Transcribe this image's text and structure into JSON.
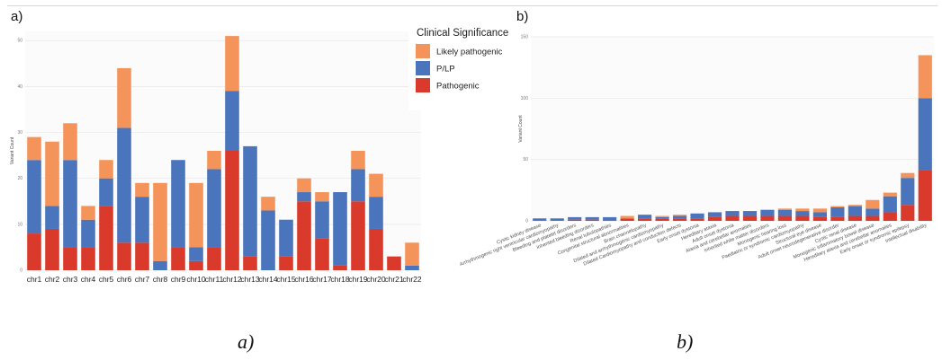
{
  "captions": {
    "a": "a)",
    "b": "b)"
  },
  "chart_data": [
    {
      "panel": "a)",
      "type": "bar",
      "stacked": true,
      "ylabel": "Variant Count",
      "xlabel": "",
      "ylim": [
        0,
        52
      ],
      "yticks": [
        0,
        10,
        20,
        30,
        40,
        50
      ],
      "grid": true,
      "legend": {
        "title": "Clinical Significance",
        "placement": "right"
      },
      "categories": [
        "chr1",
        "chr2",
        "chr3",
        "chr4",
        "chr5",
        "chr6",
        "chr7",
        "chr8",
        "chr9",
        "chr10",
        "chr11",
        "chr12",
        "chr13",
        "chr14",
        "chr15",
        "chr16",
        "chr17",
        "chr18",
        "chr19",
        "chr20",
        "chr21",
        "chr22"
      ],
      "series": [
        {
          "name": "Pathogenic",
          "color": "#d93a2b",
          "values": [
            8,
            9,
            5,
            5,
            14,
            6,
            6,
            0,
            5,
            2,
            5,
            26,
            3,
            0,
            3,
            15,
            7,
            1,
            15,
            9,
            3,
            0
          ]
        },
        {
          "name": "P/LP",
          "color": "#4a74bc",
          "values": [
            16,
            5,
            19,
            6,
            6,
            25,
            10,
            2,
            19,
            3,
            17,
            13,
            24,
            13,
            8,
            2,
            8,
            16,
            7,
            7,
            0,
            1
          ]
        },
        {
          "name": "Likely pathogenic",
          "color": "#f4935a",
          "values": [
            5,
            14,
            8,
            3,
            4,
            13,
            3,
            17,
            0,
            14,
            4,
            12,
            0,
            3,
            0,
            3,
            2,
            0,
            4,
            5,
            0,
            5
          ]
        }
      ]
    },
    {
      "panel": "b)",
      "type": "bar",
      "stacked": true,
      "ylabel": "Variant Count",
      "xlabel": "",
      "ylim": [
        0,
        150
      ],
      "yticks": [
        0,
        50,
        100,
        150
      ],
      "grid": true,
      "categories": [
        "Cystic kidney disease",
        "Arrhythmogenic right ventricular cardiomyopathy",
        "Bleeding and platelet disorders",
        "Inherited bleeding disorders",
        "Renal tubulopathies",
        "Congenital structural abnormalities",
        "Brain channelopathy",
        "Dilated and arrhythmogenic cardiomyopathy",
        "Dilated Cardiomyopathy and conduction defects",
        "Early onset dystonia",
        "Hereditary ataxia",
        "Adult onset dystonia",
        "Ataxia and cerebellar anomalies",
        "Inherited white matter disorders",
        "Monogenic hearing loss",
        "Paediatric or syndromic cardiomyopathy",
        "Structural eye disease",
        "Adult onset neurodegenerative disorder",
        "Cystic renal disease",
        "Monogenic inflammatory bowel disease",
        "Hereditary ataxia and cerebellar anomalies",
        "Early onset or syndromic epilepsy",
        "Intellectual disability"
      ],
      "series": [
        {
          "name": "Pathogenic",
          "color": "#d93a2b",
          "values": [
            0,
            0,
            1,
            1,
            0,
            2,
            2,
            2,
            2,
            2,
            3,
            4,
            4,
            4,
            4,
            4,
            3,
            3,
            4,
            4,
            7,
            13,
            41
          ]
        },
        {
          "name": "P/LP",
          "color": "#4a74bc",
          "values": [
            2,
            2,
            2,
            2,
            3,
            0,
            3,
            1,
            2,
            4,
            4,
            4,
            4,
            5,
            5,
            4,
            4,
            8,
            8,
            6,
            13,
            22,
            59
          ]
        },
        {
          "name": "Likely pathogenic",
          "color": "#f4935a",
          "values": [
            0,
            0,
            0,
            0,
            0,
            2,
            0,
            1,
            1,
            0,
            0,
            0,
            0,
            0,
            1,
            2,
            3,
            1,
            1,
            7,
            3,
            4,
            35
          ]
        }
      ]
    }
  ]
}
